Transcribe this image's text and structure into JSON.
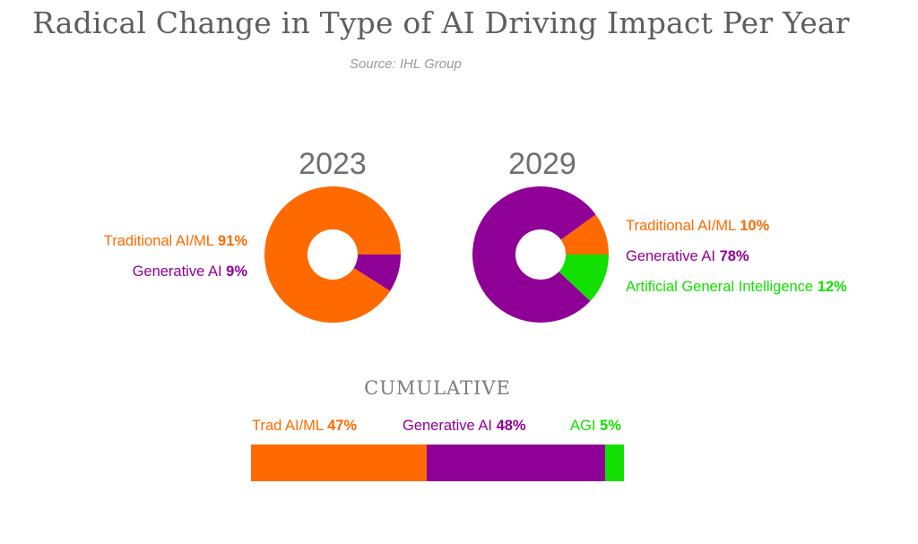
{
  "header": {
    "title": "Radical Change in Type of AI Driving Impact Per Year",
    "source": "Source: IHL Group"
  },
  "colors": {
    "traditional": "#ff6a00",
    "generative": "#8e0096",
    "agi": "#12e000"
  },
  "chart_data": [
    {
      "type": "pie",
      "title": "2023",
      "slices": [
        {
          "label": "Traditional AI/ML",
          "value": 91,
          "value_label": "91%"
        },
        {
          "label": "Generative AI",
          "value": 9,
          "value_label": "9%"
        }
      ]
    },
    {
      "type": "pie",
      "title": "2029",
      "slices": [
        {
          "label": "Traditional AI/ML",
          "value": 10,
          "value_label": "10%"
        },
        {
          "label": "Generative AI",
          "value": 78,
          "value_label": "78%"
        },
        {
          "label": "Artificial General Intelligence",
          "value": 12,
          "value_label": "12%"
        }
      ]
    },
    {
      "type": "bar",
      "title": "CUMULATIVE",
      "stacked": true,
      "segments": [
        {
          "label": "Trad AI/ML",
          "value": 47,
          "value_label": "47%"
        },
        {
          "label": "Generative AI",
          "value": 48,
          "value_label": "48%"
        },
        {
          "label": "AGI",
          "value": 5,
          "value_label": "5%"
        }
      ]
    }
  ]
}
